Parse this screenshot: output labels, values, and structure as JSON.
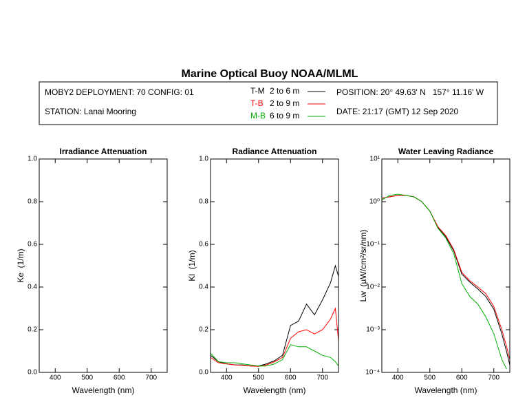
{
  "header": {
    "title": "Marine Optical Buoy NOAA/MLML",
    "deployment": "MOBY2 DEPLOYMENT: 70 CONFIG: 01",
    "station": "STATION: Lanai Mooring",
    "position": "POSITION: 20° 49.63' N   157° 11.16' W",
    "date": "DATE: 21:17 (GMT) 12 Sep 2020",
    "legend_ranges": [
      "2 to 6 m",
      "2 to 9 m",
      "6 to 9 m"
    ]
  },
  "chart_data": [
    {
      "type": "line",
      "title": "Irradiance Attenuation",
      "xlabel": "Wavelength (nm)",
      "ylabel": "Ke  (1/m)",
      "xlim": [
        350,
        750
      ],
      "xticks": [
        400,
        500,
        600,
        700
      ],
      "ylim": [
        0,
        1
      ],
      "yticks": [
        {
          "value": 0,
          "label": "0.0"
        },
        0.2,
        0.4,
        0.6,
        0.8,
        {
          "value": 1,
          "label": "1.0"
        }
      ],
      "x": [],
      "series": []
    },
    {
      "type": "line",
      "title": "Radiance Attenuation",
      "xlabel": "Wavelength (nm)",
      "ylabel": "Kl  (1/m)",
      "xlim": [
        350,
        750
      ],
      "xticks": [
        400,
        500,
        600,
        700
      ],
      "ylim": [
        0,
        1
      ],
      "yticks": [
        {
          "value": 0,
          "label": "0.0"
        },
        0.2,
        0.4,
        0.6,
        0.8,
        {
          "value": 1,
          "label": "1.0"
        }
      ],
      "x": [
        350,
        375,
        400,
        425,
        450,
        475,
        500,
        525,
        550,
        575,
        600,
        625,
        650,
        675,
        700,
        725,
        740,
        750
      ],
      "series": [
        {
          "name": "T-M",
          "color": "#000000",
          "values": [
            0.08,
            0.05,
            0.04,
            0.035,
            0.035,
            0.03,
            0.03,
            0.04,
            0.055,
            0.08,
            0.22,
            0.24,
            0.32,
            0.27,
            0.34,
            0.42,
            0.5,
            0.45
          ]
        },
        {
          "name": "T-B",
          "color": "#ff0000",
          "values": [
            0.07,
            0.045,
            0.04,
            0.035,
            0.033,
            0.03,
            0.028,
            0.035,
            0.05,
            0.07,
            0.16,
            0.19,
            0.2,
            0.18,
            0.2,
            0.25,
            0.3,
            0.15
          ]
        },
        {
          "name": "M-B",
          "color": "#00b000",
          "values": [
            0.09,
            0.05,
            0.045,
            0.045,
            0.04,
            0.035,
            0.03,
            0.03,
            0.04,
            0.06,
            0.13,
            0.12,
            0.12,
            0.1,
            0.08,
            0.07,
            0.05,
            0.03
          ]
        }
      ]
    },
    {
      "type": "line",
      "title": "Water Leaving Radiance",
      "xlabel": "Wavelength (nm)",
      "ylabel": "Lw  (µW/cm²/sr/nm)",
      "log_y": true,
      "xlim": [
        350,
        750
      ],
      "xticks": [
        400,
        500,
        600,
        700
      ],
      "ylim": [
        0.0001,
        10
      ],
      "yticks": [
        {
          "value": 0.0001,
          "label": "10⁻⁴"
        },
        {
          "value": 0.001,
          "label": "10⁻³"
        },
        {
          "value": 0.01,
          "label": "10⁻²"
        },
        {
          "value": 0.1,
          "label": "10⁻¹"
        },
        {
          "value": 1,
          "label": "10⁰"
        },
        {
          "value": 10,
          "label": "10¹"
        }
      ],
      "x": [
        350,
        375,
        400,
        425,
        450,
        475,
        500,
        525,
        550,
        575,
        600,
        625,
        650,
        675,
        700,
        725,
        740,
        750
      ],
      "series": [
        {
          "color": "#000000",
          "values": [
            1.2,
            1.3,
            1.4,
            1.4,
            1.3,
            1.0,
            0.6,
            0.25,
            0.15,
            0.07,
            0.02,
            0.013,
            0.009,
            0.006,
            0.003,
            0.0008,
            0.0003,
            0.00015
          ]
        },
        {
          "color": "#ff0000",
          "values": [
            1.2,
            1.3,
            1.4,
            1.4,
            1.3,
            1.0,
            0.6,
            0.26,
            0.16,
            0.075,
            0.022,
            0.014,
            0.01,
            0.007,
            0.0035,
            0.001,
            0.0004,
            0.0002
          ]
        },
        {
          "color": "#00b000",
          "values": [
            1.1,
            1.4,
            1.5,
            1.4,
            1.3,
            1.0,
            0.6,
            0.24,
            0.14,
            0.06,
            0.012,
            0.006,
            0.004,
            0.002,
            0.0008,
            0.0002,
            0.00012,
            null
          ]
        }
      ]
    }
  ]
}
